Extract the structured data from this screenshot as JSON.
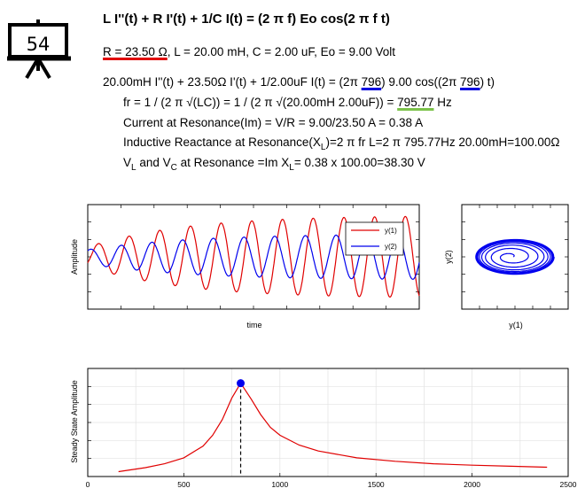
{
  "slide": {
    "number": "54",
    "icon": "presentation-board-icon"
  },
  "header": {
    "title": "L I''(t) + R I'(t) + 1/C I(t) = (2 π f) Eo cos(2 π f t)"
  },
  "params": {
    "r_label": "R = 23.50 Ω",
    "rest": ", L = 20.00 mH, C = 2.00 uF, Eo = 9.00 Volt"
  },
  "equation": {
    "part1": "20.00mH I''(t) + 23.50Ω I'(t) + 1/2.00uF I(t) = (2π ",
    "freq1": "796",
    "part2": ") 9.00 cos((2π ",
    "freq2": "796",
    "part3": ") t)"
  },
  "info": {
    "fr_text": "fr = 1 / (2 π √(LC)) = 1 / (2 π √(20.00mH 2.00uF)) = ",
    "fr_value": "795.77",
    "fr_unit": " Hz",
    "current": "Current at Resonance(Im) = V/R = 9.00/23.50 A = 0.38 A",
    "reactance_a": "Inductive Reactance at Resonance(X",
    "reactance_sub": "L",
    "reactance_b": ")=2 π fr L=2 π 795.77Hz 20.00mH=100.00Ω",
    "v_prefix": "V",
    "v_sub1": "L",
    "v_mid": " and V",
    "v_sub2": "C",
    "v_text": " at Resonance =Im X",
    "v_sub3": "L",
    "v_end": "= 0.38 x 100.00=38.30 V"
  },
  "colors": {
    "y1": "#e00000",
    "y2": "#0000ee",
    "marker": "#0000ee",
    "red_ul": "#e00000",
    "blue_ul": "#0000e0",
    "green_ul": "#7cc24a"
  },
  "chart_data": [
    {
      "type": "line",
      "xlabel": "time",
      "ylabel": "Amplitude",
      "legend_position": "top-right",
      "series": [
        {
          "name": "y(1)",
          "description": "driven oscillation, growing then steady, ~11 peaks"
        },
        {
          "name": "y(2)",
          "description": "phase-shifted oscillation, ~10 peaks"
        }
      ]
    },
    {
      "type": "line",
      "xlabel": "y(1)",
      "ylabel": "y(2)",
      "description": "phase portrait spiralling out to an ellipse"
    },
    {
      "type": "line",
      "ylabel": "Steady State Amplitude",
      "x_ticks": [
        "0",
        "500",
        "1000",
        "1500",
        "2000",
        "2500"
      ],
      "xlim": [
        0,
        2500
      ],
      "grid": true,
      "resonance_x": 795.77,
      "points": {
        "x": [
          160,
          300,
          400,
          500,
          600,
          650,
          700,
          750,
          795.77,
          850,
          900,
          950,
          1000,
          1100,
          1200,
          1400,
          1600,
          1800,
          2000,
          2200,
          2390
        ],
        "y": [
          0.05,
          0.09,
          0.13,
          0.19,
          0.31,
          0.42,
          0.58,
          0.8,
          0.95,
          0.79,
          0.63,
          0.5,
          0.42,
          0.32,
          0.26,
          0.19,
          0.155,
          0.13,
          0.115,
          0.105,
          0.095
        ]
      }
    }
  ]
}
